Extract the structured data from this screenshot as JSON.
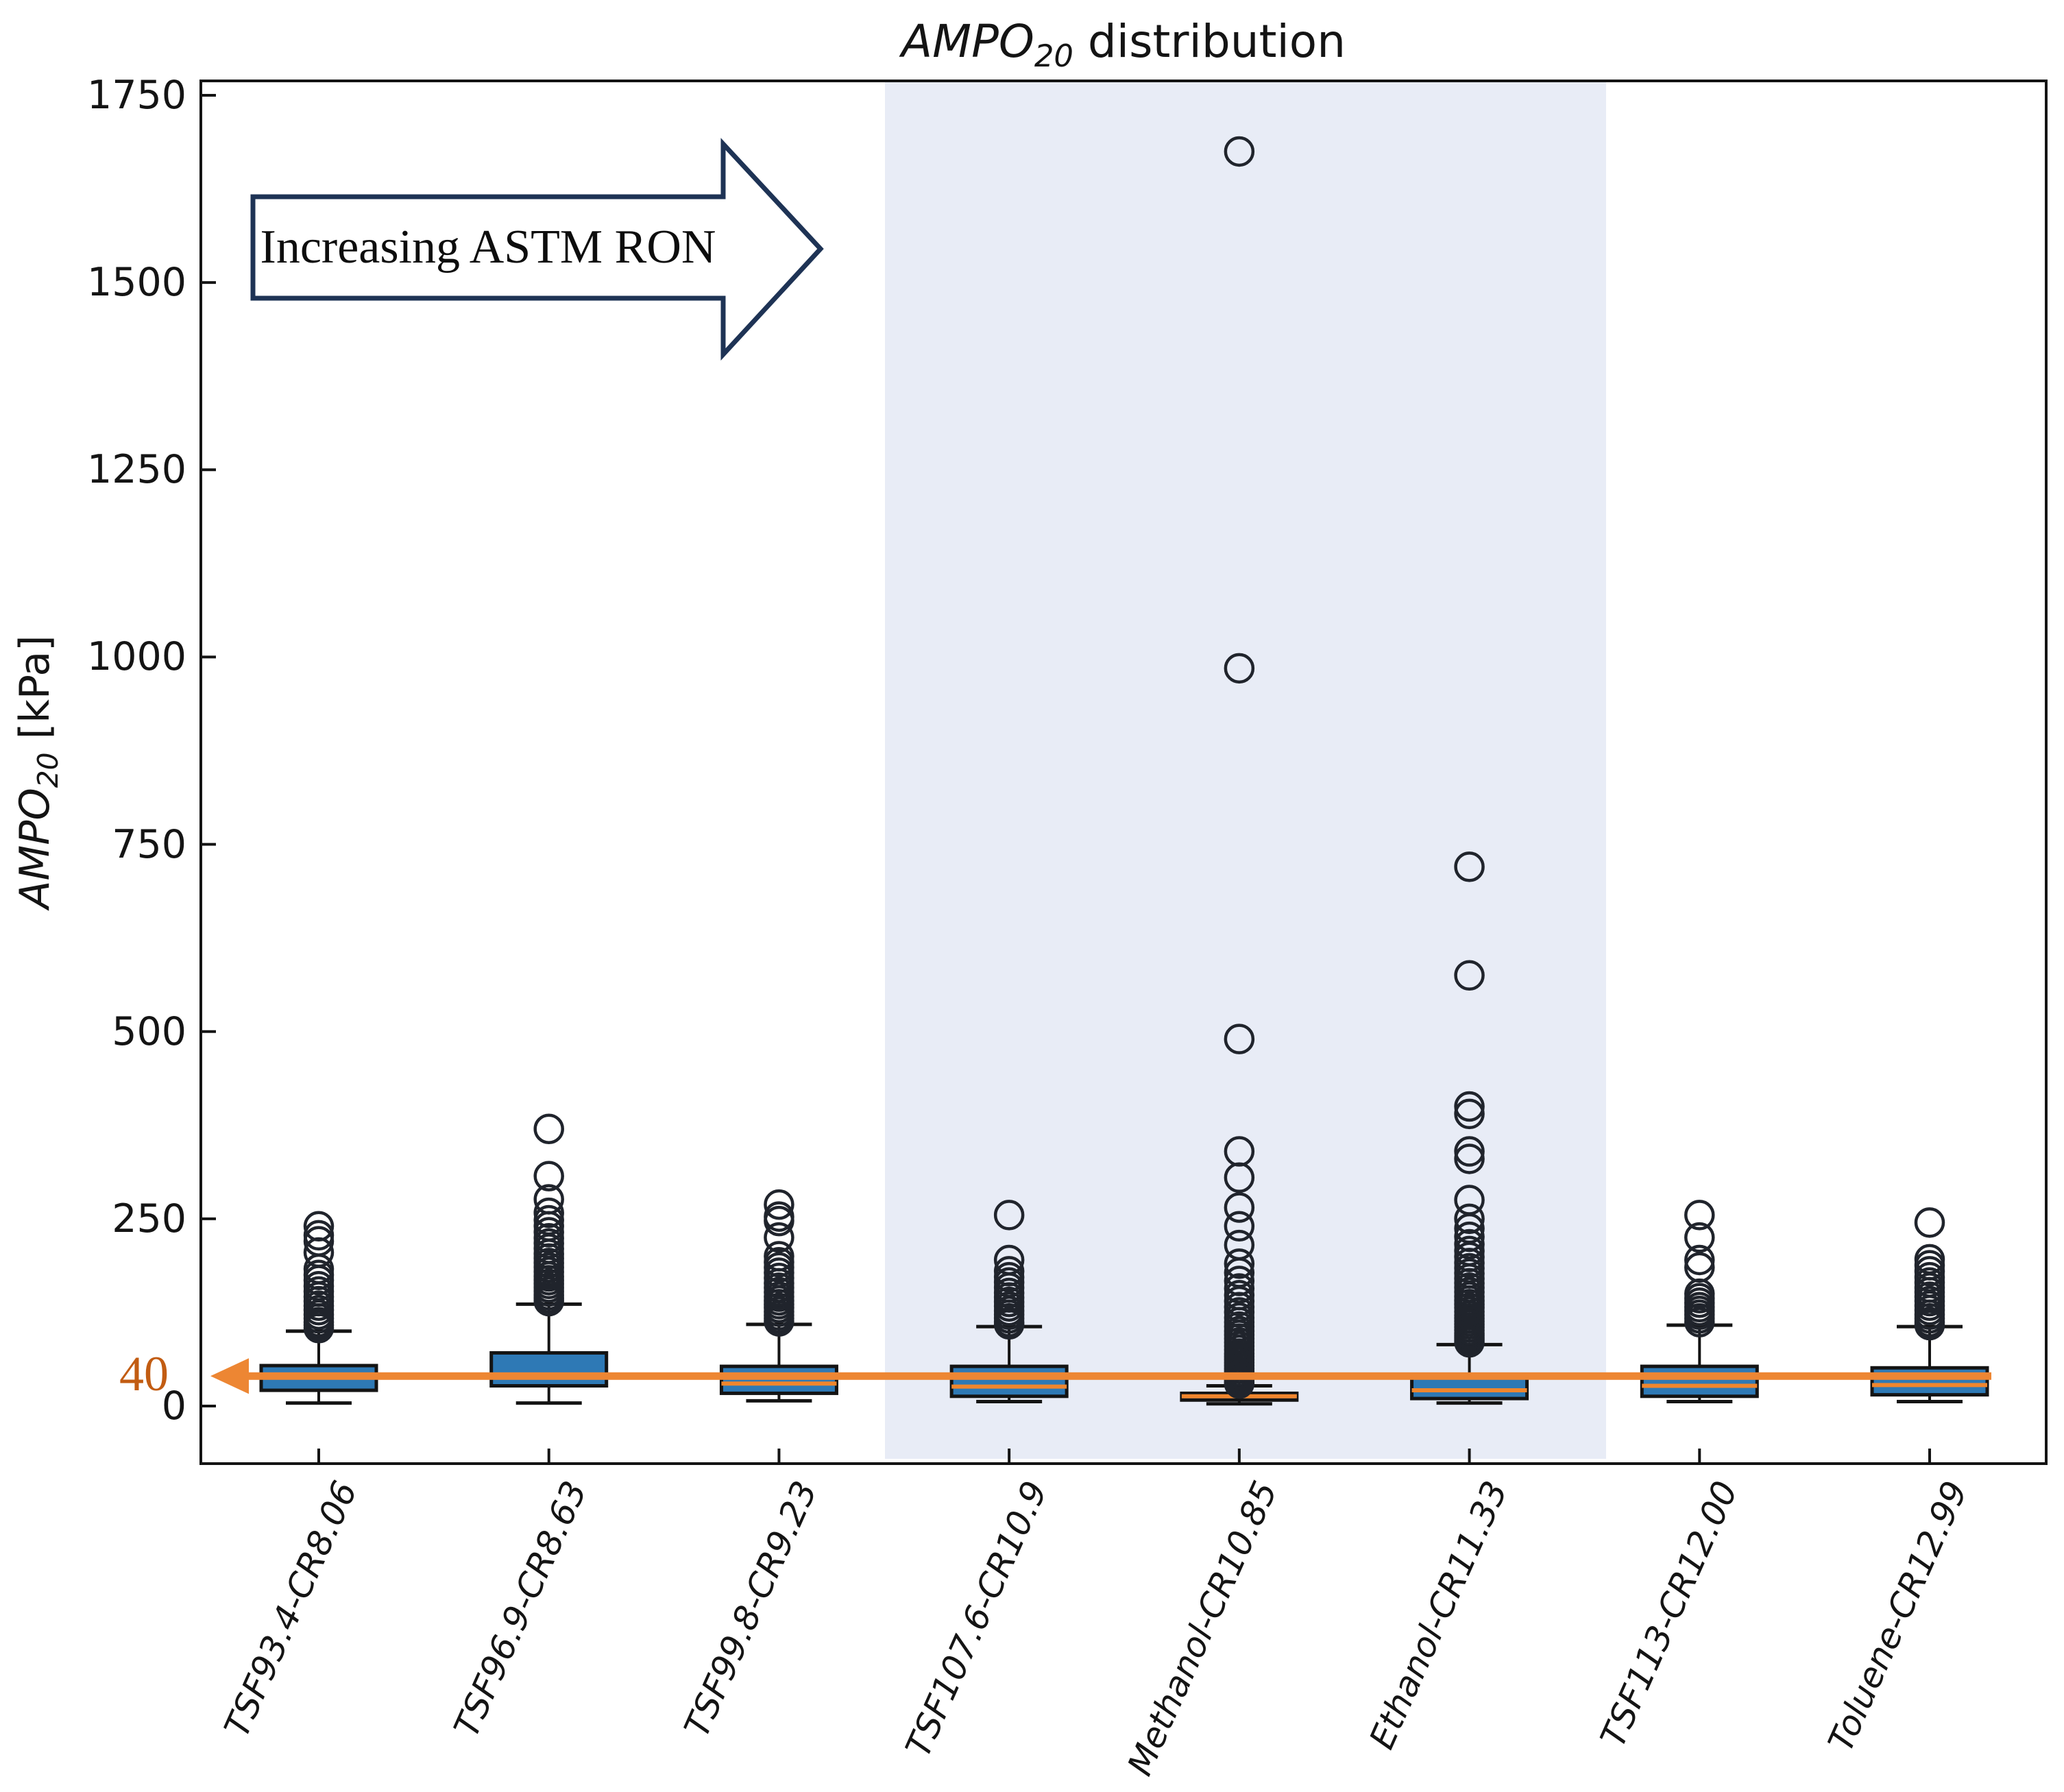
{
  "figure": {
    "title": {
      "math": "AMPO",
      "sub": "20",
      "rest": " distribution"
    },
    "y_axis": {
      "label_math": "AMPO",
      "label_sub": "20",
      "label_rest": " [kPa]",
      "ticks": [
        0,
        250,
        500,
        750,
        1000,
        1250,
        1500,
        1750
      ]
    },
    "annotations": {
      "ron_arrow_text": "Increasing ASTM RON",
      "ref_arrow": {
        "label": "40",
        "value": 40
      }
    },
    "colors": {
      "box_fill": "#2e79b5",
      "box_edge": "#141414",
      "median": "#f0862d",
      "whisker": "#141414",
      "flier_edge": "#20242c",
      "shade": "#e8ecf6",
      "ref_arrow": "#ed8633",
      "ref_label": "#c25c12",
      "ron_arrow_outline": "#1e3355",
      "frame": "#141414"
    },
    "shaded_categories": [
      "TSF107.6-CR10.9",
      "Methanol-CR10.85",
      "Ethanol-CR11.33"
    ]
  },
  "chart_data": {
    "type": "box",
    "title": "AMPO20 distribution",
    "ylabel": "AMPO20 [kPa]",
    "ylim": [
      -77,
      1765
    ],
    "yticks": [
      0,
      250,
      500,
      750,
      1000,
      1250,
      1500,
      1750
    ],
    "grid": false,
    "categories": [
      "TSF93.4-CR8.06",
      "TSF96.9-CR8.63",
      "TSF99.8-CR9.23",
      "TSF107.6-CR10.9",
      "Methanol-CR10.85",
      "Ethanol-CR11.33",
      "TSF113-CR12.00",
      "Toluene-CR12.99"
    ],
    "series": [
      {
        "label": "TSF93.4-CR8.06",
        "whislo": 4,
        "q1": 21,
        "med": 38,
        "q3": 54,
        "whishi": 100,
        "fliers": [
          240,
          228,
          220,
          205,
          183,
          175,
          168,
          160,
          153,
          146,
          140,
          134,
          128,
          122,
          117,
          112,
          108,
          104
        ]
      },
      {
        "label": "TSF96.9-CR8.63",
        "whislo": 4,
        "q1": 27,
        "med": 42,
        "q3": 71,
        "whishi": 136,
        "fliers": [
          370,
          307,
          276,
          258,
          248,
          240,
          232,
          224,
          217,
          210,
          203,
          197,
          191,
          185,
          179,
          173,
          168,
          163,
          158,
          153,
          148,
          144,
          140
        ]
      },
      {
        "label": "TSF99.8-CR9.23",
        "whislo": 7,
        "q1": 17,
        "med": 30,
        "q3": 53,
        "whishi": 109,
        "fliers": [
          269,
          253,
          247,
          225,
          200,
          192,
          185,
          178,
          171,
          164,
          158,
          152,
          146,
          141,
          136,
          131,
          126,
          121,
          117,
          113
        ]
      },
      {
        "label": "TSF107.6-CR10.9",
        "whislo": 6,
        "q1": 13,
        "med": 26,
        "q3": 53,
        "whishi": 106,
        "fliers": [
          255,
          195,
          180,
          172,
          165,
          158,
          151,
          145,
          139,
          133,
          127,
          122,
          117,
          112,
          109
        ]
      },
      {
        "label": "Methanol-CR10.85",
        "whislo": 3,
        "q1": 8,
        "med": 13,
        "q3": 17,
        "whishi": 27,
        "fliers": [
          1675,
          985,
          490,
          340,
          305,
          265,
          240,
          215,
          190,
          178,
          167,
          157,
          148,
          140,
          132,
          125,
          118,
          112,
          106,
          100,
          95,
          90,
          85,
          80,
          75,
          70,
          66,
          62,
          58,
          54,
          50,
          46,
          42,
          38,
          35,
          32,
          30
        ]
      },
      {
        "label": "Ethanol-CR11.33",
        "whislo": 4,
        "q1": 10,
        "med": 21,
        "q3": 42,
        "whishi": 82,
        "fliers": [
          720,
          575,
          400,
          390,
          340,
          330,
          275,
          250,
          237,
          226,
          216,
          207,
          199,
          191,
          184,
          177,
          170,
          164,
          158,
          152,
          146,
          141,
          136,
          131,
          126,
          121,
          117,
          113,
          109,
          105,
          101,
          97,
          94,
          91,
          88,
          85
        ]
      },
      {
        "label": "TSF113-CR12.00",
        "whislo": 6,
        "q1": 13,
        "med": 27,
        "q3": 53,
        "whishi": 108,
        "fliers": [
          255,
          225,
          195,
          185,
          150,
          144,
          138,
          132,
          127,
          122,
          117,
          112
        ]
      },
      {
        "label": "Toluene-CR12.99",
        "whislo": 6,
        "q1": 15,
        "med": 28,
        "q3": 51,
        "whishi": 106,
        "fliers": [
          245,
          196,
          188,
          180,
          172,
          165,
          158,
          152,
          146,
          140,
          134,
          128,
          122,
          117,
          112,
          108
        ]
      }
    ],
    "annotations": [
      {
        "type": "horizontal-ref-arrow",
        "y": 40,
        "label": "40",
        "direction": "left"
      },
      {
        "type": "block-arrow",
        "text": "Increasing ASTM RON",
        "direction": "right"
      },
      {
        "type": "shaded-span",
        "categories": [
          "TSF107.6-CR10.9",
          "Methanol-CR10.85",
          "Ethanol-CR11.33"
        ]
      }
    ],
    "legend": null
  }
}
